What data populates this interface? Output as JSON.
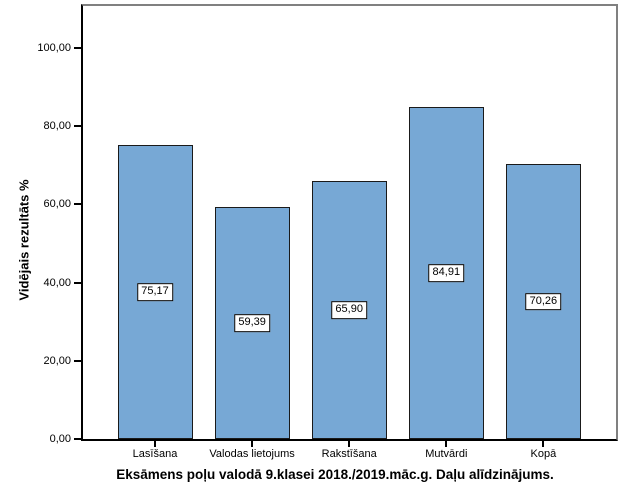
{
  "chart_data": {
    "type": "bar",
    "title": "",
    "xlabel": "Eksāmens poļu valodā 9.klasei 2018./2019.māc.g. Daļu alīdzinājums.",
    "ylabel": "Vidējais rezultāts %",
    "categories": [
      "Lasīšana",
      "Valodas lietojums",
      "Rakstīšana",
      "Mutvārdi",
      "Kopā"
    ],
    "values": [
      75.17,
      59.39,
      65.9,
      84.91,
      70.26
    ],
    "value_labels": [
      "75,17",
      "59,39",
      "65,90",
      "84,91",
      "70,26"
    ],
    "y_ticks": [
      {
        "value": 0,
        "label": "0,00"
      },
      {
        "value": 20,
        "label": "20,00"
      },
      {
        "value": 40,
        "label": "40,00"
      },
      {
        "value": 60,
        "label": "60,00"
      },
      {
        "value": 80,
        "label": "80,00"
      },
      {
        "value": 100,
        "label": "100,00"
      }
    ],
    "ylim": [
      0,
      110.7
    ],
    "grid": false,
    "legend": "none",
    "colors": {
      "bar_fill": "#77A8D5",
      "bar_border": "#1a1a1a",
      "frame_gray": "#808080",
      "axis_black": "#000000",
      "background": "#ffffff",
      "label_box_fill": "#ffffff"
    }
  }
}
